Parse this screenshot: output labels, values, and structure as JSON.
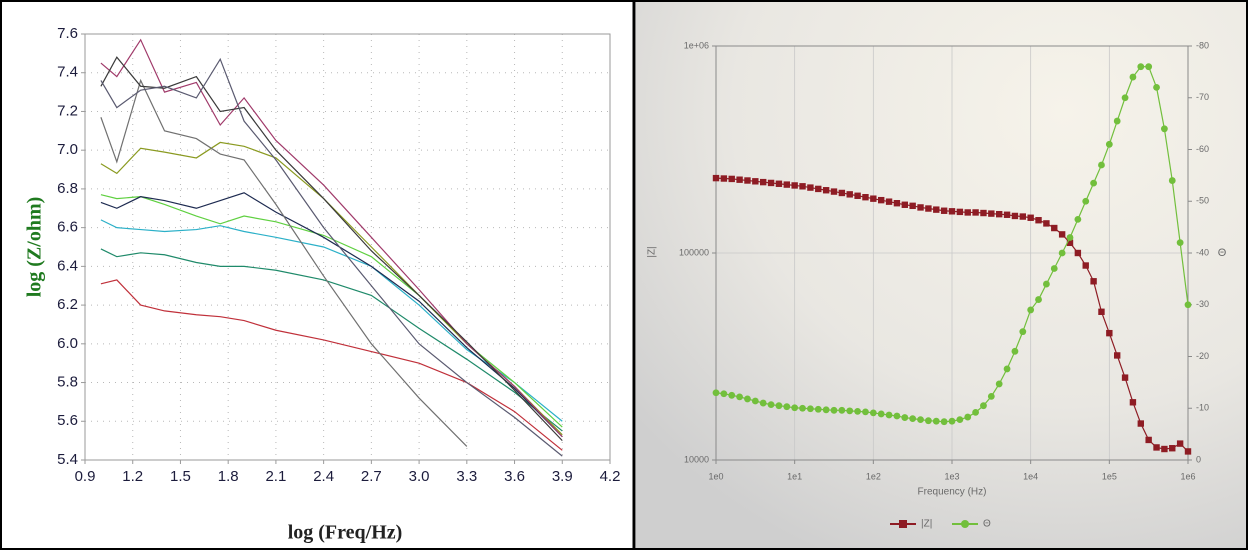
{
  "chart_data": [
    {
      "type": "line",
      "xlabel": "log (Freq/Hz)",
      "ylabel": "log (Z/ohm)",
      "ylabel_color": "#1f7a1f",
      "x": [
        1.0,
        1.1,
        1.25,
        1.4,
        1.6,
        1.75,
        1.9,
        2.1,
        2.4,
        2.7,
        3.0,
        3.3,
        3.6,
        3.9
      ],
      "xlim": [
        0.9,
        4.2
      ],
      "xticks": [
        0.9,
        1.2,
        1.5,
        1.8,
        2.1,
        2.4,
        2.7,
        {
          "value": 3,
          "label": "3.0"
        },
        3.3,
        3.6,
        3.9,
        4.2
      ],
      "ylim": [
        5.4,
        7.6
      ],
      "yticks": [
        5.4,
        5.6,
        5.8,
        {
          "value": 6,
          "label": "6.0"
        },
        6.2,
        6.4,
        6.6,
        6.8,
        {
          "value": 7,
          "label": "7.0"
        },
        7.2,
        7.4,
        7.6
      ],
      "grid": true,
      "series": [
        {
          "color": "#c0303a",
          "values": [
            6.31,
            6.33,
            6.2,
            6.17,
            6.15,
            6.14,
            6.12,
            6.07,
            6.02,
            5.96,
            5.9,
            5.8,
            5.65,
            5.45
          ]
        },
        {
          "color": "#1f8a6a",
          "values": [
            6.49,
            6.45,
            6.47,
            6.46,
            6.42,
            6.4,
            6.4,
            6.38,
            6.33,
            6.25,
            6.08,
            5.92,
            5.75,
            5.55
          ]
        },
        {
          "color": "#2bb0c8",
          "values": [
            6.64,
            6.6,
            6.59,
            6.58,
            6.59,
            6.61,
            6.58,
            6.55,
            6.5,
            6.4,
            6.2,
            5.97,
            5.8,
            5.6
          ]
        },
        {
          "color": "#5fd040",
          "values": [
            6.77,
            6.75,
            6.76,
            6.72,
            6.66,
            6.62,
            6.66,
            6.63,
            6.56,
            6.45,
            6.25,
            6.0,
            5.8,
            5.57
          ]
        },
        {
          "color": "#1d2a50",
          "values": [
            6.73,
            6.7,
            6.76,
            6.74,
            6.7,
            6.74,
            6.78,
            6.68,
            6.55,
            6.4,
            6.22,
            5.98,
            5.77,
            5.52
          ]
        },
        {
          "color": "#8a9a20",
          "values": [
            6.93,
            6.88,
            7.01,
            6.99,
            6.96,
            7.04,
            7.02,
            6.96,
            6.75,
            6.5,
            6.25,
            6.0,
            5.78,
            5.53
          ]
        },
        {
          "color": "#707070",
          "values": [
            7.17,
            6.94,
            7.36,
            7.1,
            7.06,
            6.98,
            6.95,
            6.72,
            6.35,
            6.0,
            5.72,
            5.47,
            null,
            null
          ]
        },
        {
          "color": "#a03a6a",
          "values": [
            7.45,
            7.38,
            7.57,
            7.3,
            7.35,
            7.13,
            7.27,
            7.05,
            6.82,
            6.55,
            6.28,
            6.0,
            5.78,
            5.52
          ]
        },
        {
          "color": "#3a3a3a",
          "values": [
            7.33,
            7.48,
            7.33,
            7.32,
            7.38,
            7.2,
            7.22,
            7.0,
            6.75,
            6.48,
            6.25,
            6.01,
            5.76,
            5.5
          ]
        },
        {
          "color": "#5a5a70",
          "values": [
            7.36,
            7.22,
            7.31,
            7.33,
            7.27,
            7.47,
            7.15,
            6.95,
            6.6,
            6.3,
            6.0,
            5.8,
            5.62,
            5.42
          ]
        }
      ]
    },
    {
      "type": "line",
      "xlabel": "Frequency (Hz)",
      "ylabel": "|Z|",
      "y2label": "Θ",
      "xscale": "log",
      "yscale": "log",
      "x": [
        1,
        1.259,
        1.585,
        1.995,
        2.512,
        3.162,
        3.981,
        5.012,
        6.31,
        7.943,
        10,
        12.59,
        15.85,
        19.95,
        25.12,
        31.62,
        39.81,
        50.12,
        63.1,
        79.43,
        100,
        125.9,
        158.5,
        199.5,
        251.2,
        316.2,
        398.1,
        501.2,
        631,
        794.3,
        1000,
        1259,
        1585,
        1995,
        2512,
        3162,
        3981,
        5012,
        6310,
        7943,
        10000,
        12590,
        15850,
        19950,
        25120,
        31620,
        39810,
        50120,
        63100,
        79430,
        100000,
        125900,
        158500,
        199500,
        251200,
        316200,
        398100,
        501200,
        631000,
        794300,
        1000000
      ],
      "xlim": [
        1,
        1000000
      ],
      "xticks": [
        {
          "value": 1,
          "label": "1e0"
        },
        {
          "value": 10,
          "label": "1e1"
        },
        {
          "value": 100,
          "label": "1e2"
        },
        {
          "value": 1000,
          "label": "1e3"
        },
        {
          "value": 10000,
          "label": "1e4"
        },
        {
          "value": 100000,
          "label": "1e5"
        },
        {
          "value": 1000000,
          "label": "1e6"
        }
      ],
      "ylim": [
        10000,
        1000000
      ],
      "yticks": [
        10000,
        100000,
        {
          "value": 1000000,
          "label": "1e+06"
        }
      ],
      "y2lim": [
        0,
        -80
      ],
      "y2ticks": [
        0,
        -10,
        -20,
        -30,
        -40,
        -50,
        -60,
        -70,
        -80
      ],
      "grid": true,
      "legend": "bottom",
      "series": [
        {
          "name": "|Z|",
          "color": "#8e1c24",
          "marker": "square",
          "values": [
            230000,
            229000,
            228000,
            226000,
            224000,
            222000,
            220000,
            218000,
            216000,
            214000,
            212000,
            210000,
            207000,
            204000,
            201000,
            198000,
            195000,
            192000,
            189000,
            186000,
            183000,
            180000,
            177000,
            174000,
            171000,
            169000,
            166000,
            164000,
            162000,
            160000,
            159000,
            158000,
            157000,
            157000,
            156000,
            155000,
            154000,
            153000,
            151000,
            150000,
            148000,
            144000,
            139000,
            132000,
            123000,
            112000,
            100000,
            87000,
            73000,
            52000,
            41000,
            32000,
            25000,
            19000,
            15000,
            12500,
            11500,
            11300,
            11400,
            12000,
            11000
          ]
        },
        {
          "name": "Θ",
          "color": "#72bf3c",
          "marker": "circle",
          "axis": "y2",
          "values": [
            -13,
            -12.8,
            -12.5,
            -12.2,
            -11.8,
            -11.4,
            -11,
            -10.7,
            -10.5,
            -10.3,
            -10.1,
            -10,
            -9.9,
            -9.8,
            -9.7,
            -9.6,
            -9.6,
            -9.5,
            -9.4,
            -9.3,
            -9.1,
            -8.9,
            -8.7,
            -8.5,
            -8.2,
            -8,
            -7.8,
            -7.6,
            -7.5,
            -7.4,
            -7.5,
            -7.8,
            -8.3,
            -9.2,
            -10.5,
            -12.3,
            -14.7,
            -17.6,
            -21,
            -24.8,
            -29,
            -31,
            -34,
            -37,
            -40,
            -43,
            -46.5,
            -50,
            -53.5,
            -57,
            -61,
            -65.5,
            -70,
            -74,
            -76,
            -76,
            -72,
            -64,
            -54,
            -42,
            -30
          ]
        }
      ]
    }
  ]
}
